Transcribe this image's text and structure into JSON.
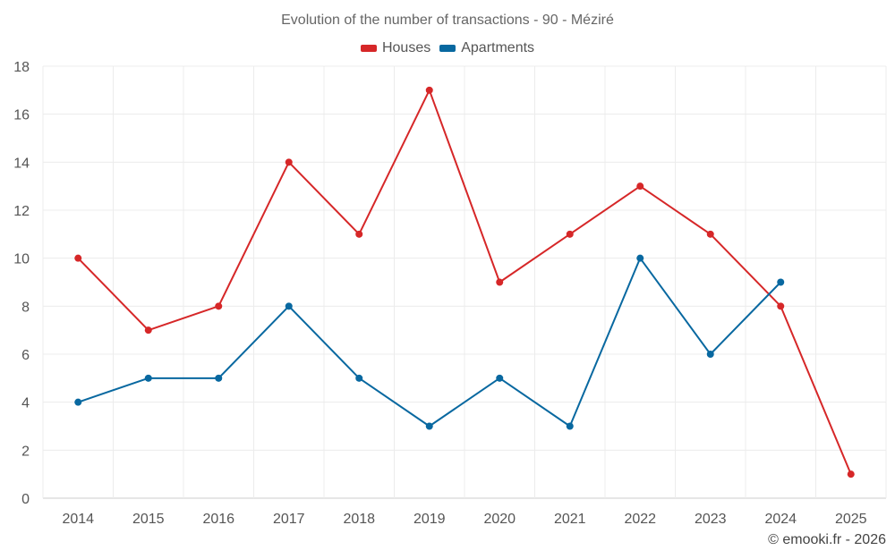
{
  "chart_data": {
    "type": "line",
    "title": "Evolution of the number of transactions - 90 - Méziré",
    "categories": [
      "2014",
      "2015",
      "2016",
      "2017",
      "2018",
      "2019",
      "2020",
      "2021",
      "2022",
      "2023",
      "2024",
      "2025"
    ],
    "series": [
      {
        "name": "Houses",
        "color": "#d62728",
        "values": [
          10,
          7,
          8,
          14,
          11,
          17,
          9,
          11,
          13,
          11,
          8,
          1
        ]
      },
      {
        "name": "Apartments",
        "color": "#0868a0",
        "values": [
          4,
          5,
          5,
          8,
          5,
          3,
          5,
          3,
          10,
          6,
          9,
          null
        ]
      }
    ],
    "ylim": [
      0,
      18
    ],
    "yticks": [
      0,
      2,
      4,
      6,
      8,
      10,
      12,
      14,
      16,
      18
    ],
    "xlabel": "",
    "ylabel": "",
    "grid": true,
    "legend": "top-center"
  },
  "credit": "© emooki.fr - 2026"
}
